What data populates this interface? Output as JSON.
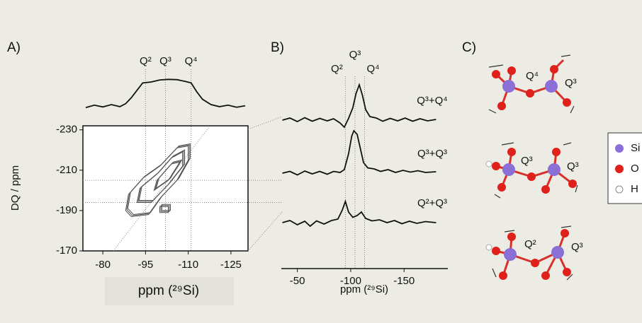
{
  "chart_data": [
    {
      "type": "contour",
      "label": "A)",
      "xlabel": "ppm (²⁹Si)",
      "ylabel": "DQ / ppm",
      "xlim": [
        -73,
        -131
      ],
      "xticks": [
        -80,
        -95,
        -110,
        -125
      ],
      "ylim": [
        -170,
        -232
      ],
      "yticks": [
        -230,
        -210,
        -190,
        -170
      ],
      "markers": [
        {
          "value": -95,
          "label": "Q²"
        },
        {
          "value": -102,
          "label": "Q³"
        },
        {
          "value": -111,
          "label": "Q⁴"
        }
      ],
      "guides_y": [
        -205,
        -194
      ],
      "contours": [
        {
          "x": [
            -88,
            -90,
            -96,
            -100,
            -106,
            -110,
            -110,
            -106,
            -100,
            -94,
            -89,
            -88
          ],
          "y": [
            -190,
            -187,
            -188,
            -196,
            -205,
            -215,
            -222,
            -221,
            -212,
            -206,
            -198,
            -190
          ]
        },
        {
          "x": [
            -92,
            -97,
            -103,
            -108,
            -108,
            -104,
            -99,
            -93,
            -92
          ],
          "y": [
            -194,
            -194,
            -203,
            -212,
            -219,
            -216,
            -208,
            -201,
            -194
          ]
        },
        {
          "x": [
            -98,
            -103,
            -107,
            -104,
            -99,
            -98
          ],
          "y": [
            -200,
            -205,
            -214,
            -213,
            -205,
            -200
          ]
        },
        {
          "x": [
            -100,
            -103,
            -103,
            -100,
            -100
          ],
          "y": [
            -189,
            -189,
            -192,
            -192,
            -189
          ]
        }
      ],
      "projection": {
        "x": [
          -74,
          -77,
          -80,
          -83,
          -86,
          -88,
          -90,
          -92,
          -94,
          -97,
          -100,
          -103,
          -106,
          -109,
          -111,
          -113,
          -115,
          -118,
          -121,
          -124,
          -127,
          -130
        ],
        "values": [
          0.02,
          0.1,
          0.04,
          0.12,
          0.05,
          0.15,
          0.35,
          0.6,
          0.85,
          0.88,
          0.95,
          0.97,
          0.96,
          0.9,
          0.85,
          0.55,
          0.3,
          0.12,
          0.05,
          0.1,
          0.03,
          0.08
        ]
      }
    },
    {
      "type": "stacked-spectra",
      "label": "B)",
      "xlabel": "ppm (²⁹Si)",
      "xlim": [
        -35,
        -191
      ],
      "xticks": [
        -50,
        -100,
        -150
      ],
      "markers": [
        {
          "value": -95,
          "label": "Q²"
        },
        {
          "value": -104,
          "label": "Q³"
        },
        {
          "value": -113,
          "label": "Q⁴"
        }
      ],
      "series": [
        {
          "name": "Q³+Q⁴",
          "x": [
            -36,
            -43,
            -50,
            -57,
            -64,
            -71,
            -78,
            -84,
            -90,
            -94,
            -98,
            -102,
            -105,
            -108,
            -111,
            -114,
            -118,
            -124,
            -130,
            -137,
            -144,
            -151,
            -158,
            -165,
            -172,
            -180
          ],
          "values": [
            0,
            0.06,
            -0.04,
            0.07,
            -0.03,
            0.05,
            -0.02,
            0.04,
            -0.08,
            -0.2,
            0.05,
            0.35,
            0.75,
            1,
            0.7,
            0.3,
            0.1,
            0.06,
            -0.03,
            0.05,
            -0.02,
            0.06,
            -0.03,
            0.04,
            -0.02,
            0.02
          ]
        },
        {
          "name": "Q³+Q³",
          "x": [
            -36,
            -43,
            -50,
            -57,
            -64,
            -71,
            -78,
            -84,
            -90,
            -94,
            -98,
            -101,
            -103,
            -106,
            -109,
            -112,
            -116,
            -122,
            -128,
            -135,
            -142,
            -149,
            -156,
            -163,
            -170,
            -180
          ],
          "values": [
            0,
            0.05,
            -0.05,
            0.06,
            -0.02,
            0.05,
            -0.03,
            0.05,
            0.02,
            0.1,
            0.55,
            1.05,
            1.2,
            1.1,
            0.7,
            0.3,
            0.15,
            0.12,
            0.05,
            0.1,
            0.02,
            0.08,
            0.03,
            0.07,
            0.02,
            0.04
          ]
        },
        {
          "name": "Q²+Q³",
          "x": [
            -36,
            -43,
            -50,
            -57,
            -62,
            -68,
            -75,
            -82,
            -88,
            -92,
            -95,
            -98,
            -102,
            -106,
            -110,
            -114,
            -120,
            -127,
            -134,
            -141,
            -148,
            -155,
            -162,
            -170,
            -180
          ],
          "values": [
            0,
            0.06,
            -0.06,
            0.04,
            -0.1,
            0.05,
            -0.04,
            0.06,
            0.1,
            0.35,
            0.6,
            0.3,
            0.15,
            0.2,
            0.3,
            0.12,
            0.05,
            0.08,
            0,
            0.06,
            -0.03,
            0.04,
            -0.02,
            0.03,
            0
          ]
        }
      ]
    }
  ],
  "diagram": {
    "label": "C)",
    "structures": [
      {
        "labels": [
          "Q⁴",
          "Q³"
        ]
      },
      {
        "labels": [
          "Q³",
          "Q³"
        ]
      },
      {
        "labels": [
          "Q²",
          "Q³"
        ]
      }
    ],
    "legend": [
      "Si",
      "O",
      "H"
    ]
  }
}
